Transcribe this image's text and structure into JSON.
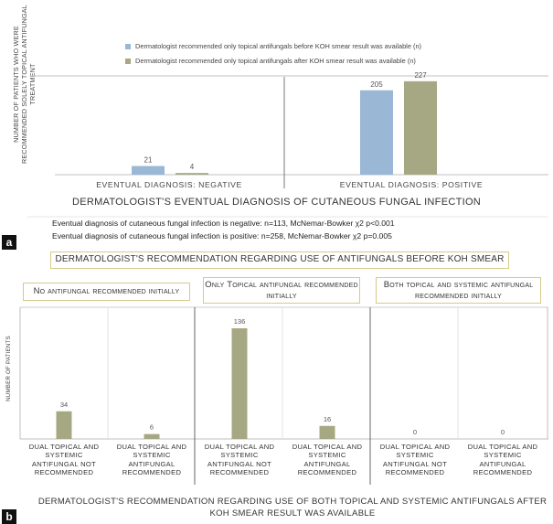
{
  "panel_a": {
    "tag": "a",
    "ylabel": "NUMBER OF PATIENTS WHO WERE RECOMMENDED SOLELY TOPICAL ANTIFUNGAL TREATMENT",
    "stat_line1": "Eventual diagnosis of cutaneous fungal infection is negative: n=113, McNemar-Bowker χ2 p<0.001",
    "stat_line2": "Eventual diagnosis of cutaneous fungal infection is positive: n=258, McNemar-Bowker χ2 p=0.005"
  },
  "panel_b": {
    "tag": "b",
    "header": "DERMATOLOGIST'S RECOMMENDATION REGARDING USE OF ANTIFUNGALS BEFORE KOH SMEAR",
    "ylabel": "NUMBER OF PATIENTS",
    "group_labels": [
      "No antifungal recommended initially",
      "Only Topical antifungal recommended initially",
      "Both topical and systemic antifungal recommended initially"
    ]
  },
  "chart_data": [
    {
      "type": "bar",
      "title": "DERMATOLOGIST'S EVENTUAL DIAGNOSIS OF CUTANEOUS FUNGAL INFECTION",
      "xlabel": "DERMATOLOGIST'S EVENTUAL DIAGNOSIS OF CUTANEOUS FUNGAL INFECTION",
      "ylabel": "NUMBER OF PATIENTS WHO WERE RECOMMENDED SOLELY TOPICAL ANTIFUNGAL TREATMENT",
      "categories": [
        "EVENTUAL DIAGNOSIS: NEGATIVE",
        "EVENTUAL DIAGNOSIS: POSITIVE"
      ],
      "series": [
        {
          "name": "Dermatologist recommended only topical antifungals before KOH smear result was available (n)",
          "color": "#9ab7d6",
          "values": [
            21,
            205
          ]
        },
        {
          "name": "Dermatologist recommended only topical antifungals after KOH smear result was available (n)",
          "color": "#a5a882",
          "values": [
            4,
            227
          ]
        }
      ],
      "ylim": [
        0,
        240
      ],
      "legend": "top"
    },
    {
      "type": "bar",
      "title": "DERMATOLOGIST'S RECOMMENDATION REGARDING USE OF ANTIFUNGALS BEFORE KOH SMEAR",
      "xlabel": "DERMATOLOGIST'S RECOMMENDATION REGARDING USE OF BOTH TOPICAL AND SYSTEMIC ANTIFUNGALS AFTER KOH SMEAR RESULT WAS AVAILABLE",
      "ylabel": "NUMBER OF PATIENTS",
      "groups": [
        "No antifungal recommended initially",
        "Only Topical antifungal recommended initially",
        "Both topical and systemic antifungal recommended initially"
      ],
      "categories": [
        "DUAL TOPICAL AND SYSTEMIC ANTIFUNGAL NOT RECOMMENDED",
        "DUAL TOPICAL AND SYSTEMIC ANTIFUNGAL RECOMMENDED",
        "DUAL TOPICAL AND SYSTEMIC ANTIFUNGAL NOT RECOMMENDED",
        "DUAL TOPICAL AND SYSTEMIC ANTIFUNGAL RECOMMENDED",
        "DUAL TOPICAL AND SYSTEMIC ANTIFUNGAL NOT RECOMMENDED",
        "DUAL TOPICAL AND SYSTEMIC ANTIFUNGAL RECOMMENDED"
      ],
      "category_lines": [
        [
          "DUAL TOPICAL AND",
          "SYSTEMIC",
          "ANTIFUNGAL NOT",
          "RECOMMENDED"
        ],
        [
          "DUAL TOPICAL AND",
          "SYSTEMIC",
          "ANTIFUNGAL",
          "RECOMMENDED"
        ],
        [
          "DUAL TOPICAL AND",
          "SYSTEMIC",
          "ANTIFUNGAL NOT",
          "RECOMMENDED"
        ],
        [
          "DUAL TOPICAL AND",
          "SYSTEMIC",
          "ANTIFUNGAL",
          "RECOMMENDED"
        ],
        [
          "DUAL TOPICAL AND",
          "SYSTEMIC",
          "ANTIFUNGAL NOT",
          "RECOMMENDED"
        ],
        [
          "DUAL TOPICAL AND",
          "SYSTEMIC",
          "ANTIFUNGAL",
          "RECOMMENDED"
        ]
      ],
      "values": [
        34,
        6,
        136,
        16,
        0,
        0
      ],
      "color": "#a5a882",
      "ylim": [
        0,
        145
      ]
    }
  ]
}
